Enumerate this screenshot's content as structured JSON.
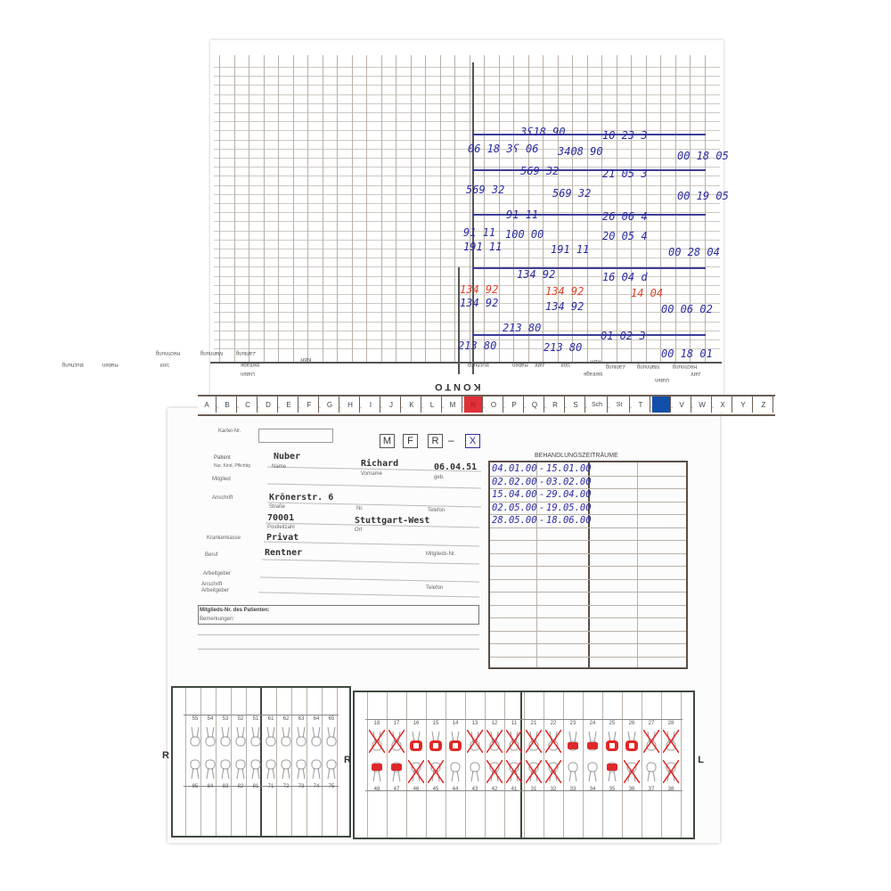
{
  "konto": {
    "title": "KONTO",
    "column_headers": [
      "Beträge",
      "Soll",
      "Haben",
      "Buchung",
      "KBR",
      "Daten",
      "Zahlung",
      "Mahnung",
      "Rechnung",
      "Jahr"
    ],
    "entries": [
      {
        "text": "3ʕ18 90",
        "color": "blue"
      },
      {
        "text": "10 23 3",
        "color": "blue"
      },
      {
        "text": "06 18 3ʕ 06",
        "color": "blue"
      },
      {
        "text": "3408 90",
        "color": "blue"
      },
      {
        "text": "00 18 05",
        "color": "blue"
      },
      {
        "text": "569 32",
        "color": "blue"
      },
      {
        "text": "21 05 3",
        "color": "blue"
      },
      {
        "text": "569 32",
        "color": "blue"
      },
      {
        "text": "569 32",
        "color": "blue"
      },
      {
        "text": "00 19 05",
        "color": "blue"
      },
      {
        "text": "91 11",
        "color": "blue"
      },
      {
        "text": "26 06 4",
        "color": "blue"
      },
      {
        "text": "91 11",
        "color": "blue"
      },
      {
        "text": "100 00",
        "color": "blue"
      },
      {
        "text": "20 05 4",
        "color": "blue"
      },
      {
        "text": "191 11",
        "color": "blue"
      },
      {
        "text": "191 11",
        "color": "blue"
      },
      {
        "text": "00 28 04",
        "color": "blue"
      },
      {
        "text": "134 92",
        "color": "blue"
      },
      {
        "text": "16 04 d",
        "color": "blue"
      },
      {
        "text": "134 92",
        "color": "red"
      },
      {
        "text": "134 92",
        "color": "red"
      },
      {
        "text": "14 04",
        "color": "red"
      },
      {
        "text": "134 92",
        "color": "blue"
      },
      {
        "text": "134 92",
        "color": "blue"
      },
      {
        "text": "00 06 02",
        "color": "blue"
      },
      {
        "text": "213 80",
        "color": "blue"
      },
      {
        "text": "01 02 3",
        "color": "blue"
      },
      {
        "text": "213 80",
        "color": "blue"
      },
      {
        "text": "213 80",
        "color": "blue"
      },
      {
        "text": "00 18 01",
        "color": "blue"
      }
    ]
  },
  "alphabet_tabs": {
    "letters": [
      "A",
      "B",
      "C",
      "D",
      "E",
      "F",
      "G",
      "H",
      "I",
      "J",
      "K",
      "L",
      "M",
      "N",
      "O",
      "P",
      "Q",
      "R",
      "S",
      "Sch",
      "St",
      "T",
      "U",
      "V",
      "W",
      "X",
      "Y",
      "Z"
    ],
    "marked": {
      "N": "#e0303a",
      "U": "#1050a8"
    }
  },
  "form": {
    "labels": {
      "kartei_nr": "Kartei-Nr.",
      "patient": "Patient",
      "patient_sub": "Nur, Kind, Pflichtig",
      "mitglied": "Mitglied",
      "anschrift": "Anschrift",
      "krankenkasse": "Krankenkasse",
      "beruf": "Beruf",
      "arbeitgeber": "Arbeitgeber",
      "anschrift_arbeitgeber": "Anschrift Arbeitgeber",
      "mitglieds_nr_patient": "Mitglieds-Nr. des Patienten:",
      "bemerkungen": "Bemerkungen:",
      "name": "Name",
      "vorname": "Vorname",
      "geb": "geb.",
      "strasse": "Straße",
      "nr": "Nr.",
      "telefon": "Telefon",
      "postleitzahl": "Postleitzahl",
      "ort": "Ort",
      "mitglieds_nr": "Mitglieds-Nr."
    },
    "sex_boxes": [
      "M",
      "F",
      "R",
      "X"
    ],
    "sex_dash": "–",
    "values": {
      "name": "Nuber",
      "vorname": "Richard",
      "geb": "06.04.51",
      "strasse": "Krönerstr. 6",
      "plz": "70001",
      "ort": "Stuttgart-West",
      "krankenkasse": "Privat",
      "beruf": "Rentner"
    }
  },
  "behandlungszeitraeume": {
    "title": "BEHANDLUNGSZEITRÄUME",
    "rows": [
      {
        "from": "04.01.00",
        "to": "15.01.00"
      },
      {
        "from": "02.02.00",
        "to": "03.02.00"
      },
      {
        "from": "15.04.00",
        "to": "29.04.00"
      },
      {
        "from": "02.05.00",
        "to": "19.05.00"
      },
      {
        "from": "28.05.00",
        "to": "18.06.00"
      }
    ],
    "separator": "-"
  },
  "tooth_charts": {
    "side_right": "R",
    "side_left": "L",
    "deciduous": {
      "upper": [
        "55",
        "54",
        "53",
        "52",
        "51",
        "61",
        "62",
        "63",
        "64",
        "65"
      ],
      "lower": [
        "85",
        "84",
        "83",
        "82",
        "81",
        "71",
        "72",
        "73",
        "74",
        "75"
      ]
    },
    "permanent": {
      "upper": [
        {
          "n": "18",
          "s": "missing"
        },
        {
          "n": "17",
          "s": "missing"
        },
        {
          "n": "16",
          "s": "crown"
        },
        {
          "n": "15",
          "s": "crown"
        },
        {
          "n": "14",
          "s": "crown"
        },
        {
          "n": "13",
          "s": "missing"
        },
        {
          "n": "12",
          "s": "missing"
        },
        {
          "n": "11",
          "s": "missing"
        },
        {
          "n": "21",
          "s": "missing"
        },
        {
          "n": "22",
          "s": "missing"
        },
        {
          "n": "23",
          "s": "filling"
        },
        {
          "n": "24",
          "s": "filling"
        },
        {
          "n": "25",
          "s": "crown"
        },
        {
          "n": "26",
          "s": "crown"
        },
        {
          "n": "27",
          "s": "missing"
        },
        {
          "n": "28",
          "s": "missing"
        }
      ],
      "lower": [
        {
          "n": "48",
          "s": "filling"
        },
        {
          "n": "47",
          "s": "filling"
        },
        {
          "n": "46",
          "s": "missing"
        },
        {
          "n": "45",
          "s": "missing"
        },
        {
          "n": "44",
          "s": "healthy"
        },
        {
          "n": "43",
          "s": "healthy"
        },
        {
          "n": "42",
          "s": "missing"
        },
        {
          "n": "41",
          "s": "missing"
        },
        {
          "n": "31",
          "s": "missing"
        },
        {
          "n": "32",
          "s": "missing"
        },
        {
          "n": "33",
          "s": "healthy"
        },
        {
          "n": "34",
          "s": "healthy"
        },
        {
          "n": "35",
          "s": "filling"
        },
        {
          "n": "36",
          "s": "missing"
        },
        {
          "n": "37",
          "s": "healthy"
        },
        {
          "n": "38",
          "s": "missing"
        }
      ]
    },
    "marking_color": "#e02828"
  }
}
